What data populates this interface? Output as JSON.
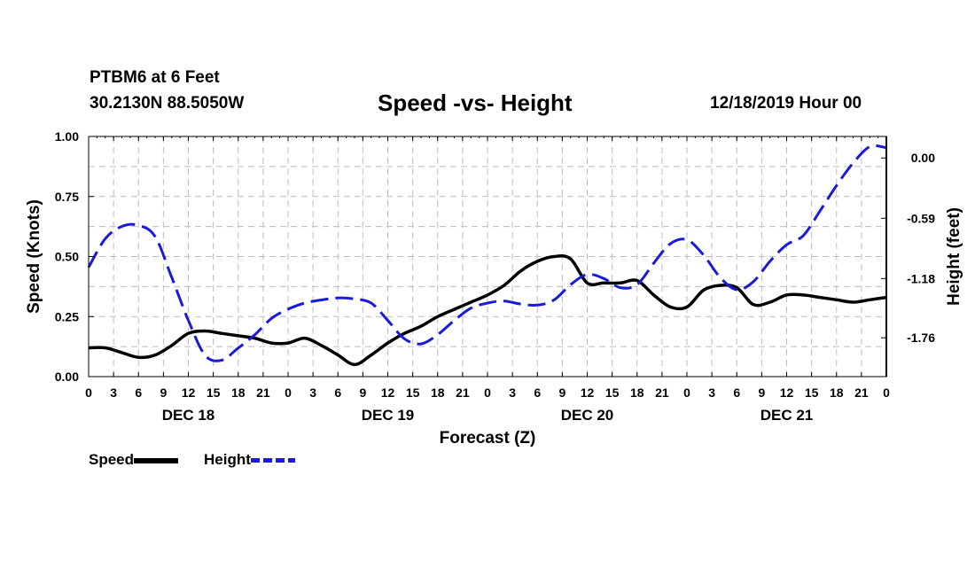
{
  "header": {
    "station": "PTBM6 at 6 Feet",
    "coords": "30.2130N 88.5050W",
    "title": "Speed -vs- Height",
    "timestamp": "12/18/2019 Hour 00"
  },
  "legend": {
    "speed": "Speed",
    "height": "Height"
  },
  "colors": {
    "speed": "#000000",
    "height": "#1a1adb",
    "grid": "#bdbdbd"
  },
  "chart_data": {
    "type": "line",
    "title": "Speed -vs- Height",
    "xlabel": "Forecast (Z)",
    "ylabel_left": "Speed (Knots)",
    "ylabel_right": "Height (feet)",
    "xlim": [
      0,
      96
    ],
    "ylim_left": [
      0,
      1.0
    ],
    "ylim_right": [
      -2.14,
      0.21
    ],
    "x_tick_labels": [
      "0",
      "3",
      "6",
      "9",
      "12",
      "15",
      "18",
      "21",
      "0",
      "3",
      "6",
      "9",
      "12",
      "15",
      "18",
      "21",
      "0",
      "3",
      "6",
      "9",
      "12",
      "15",
      "18",
      "21",
      "0",
      "3",
      "6",
      "9",
      "12",
      "15",
      "18",
      "21",
      "0"
    ],
    "left_ticks": [
      "0.00",
      "0.25",
      "0.50",
      "0.75",
      "1.00"
    ],
    "right_ticks": [
      {
        "value": 0.0,
        "label": "0.00"
      },
      {
        "value": -0.59,
        "label": "-0.59"
      },
      {
        "value": -1.18,
        "label": "-1.18"
      },
      {
        "value": -1.76,
        "label": "-1.76"
      }
    ],
    "day_labels": [
      {
        "hour": 12,
        "label": "DEC 18"
      },
      {
        "hour": 36,
        "label": "DEC 19"
      },
      {
        "hour": 60,
        "label": "DEC 20"
      },
      {
        "hour": 84,
        "label": "DEC 21"
      }
    ],
    "grid": true,
    "series": [
      {
        "name": "Speed",
        "axis": "left",
        "x": [
          0,
          2,
          4,
          6,
          8,
          10,
          12,
          14,
          16,
          18,
          20,
          22,
          24,
          26,
          28,
          30,
          32,
          34,
          36,
          38,
          40,
          42,
          44,
          46,
          48,
          50,
          52,
          54,
          56,
          58,
          60,
          62,
          64,
          66,
          68,
          70,
          72,
          74,
          76,
          78,
          80,
          82,
          84,
          86,
          88,
          90,
          92,
          94,
          96
        ],
        "values": [
          0.12,
          0.12,
          0.1,
          0.08,
          0.09,
          0.13,
          0.18,
          0.19,
          0.18,
          0.17,
          0.16,
          0.14,
          0.14,
          0.16,
          0.13,
          0.09,
          0.05,
          0.09,
          0.14,
          0.18,
          0.21,
          0.25,
          0.28,
          0.31,
          0.34,
          0.38,
          0.44,
          0.48,
          0.5,
          0.49,
          0.39,
          0.39,
          0.39,
          0.4,
          0.34,
          0.29,
          0.29,
          0.36,
          0.38,
          0.37,
          0.3,
          0.31,
          0.34,
          0.34,
          0.33,
          0.32,
          0.31,
          0.32,
          0.33
        ]
      },
      {
        "name": "Height",
        "axis": "right",
        "x": [
          0,
          2,
          4,
          6,
          8,
          10,
          12,
          14,
          16,
          18,
          20,
          22,
          24,
          26,
          28,
          30,
          32,
          34,
          36,
          38,
          40,
          42,
          44,
          46,
          48,
          50,
          52,
          54,
          56,
          58,
          60,
          62,
          64,
          66,
          68,
          70,
          72,
          74,
          76,
          78,
          80,
          82,
          84,
          86,
          88,
          90,
          92,
          94,
          96
        ],
        "values": [
          -1.07,
          -0.79,
          -0.67,
          -0.66,
          -0.77,
          -1.17,
          -1.59,
          -1.93,
          -1.98,
          -1.86,
          -1.73,
          -1.57,
          -1.48,
          -1.42,
          -1.39,
          -1.37,
          -1.38,
          -1.42,
          -1.59,
          -1.77,
          -1.82,
          -1.73,
          -1.59,
          -1.47,
          -1.42,
          -1.4,
          -1.43,
          -1.44,
          -1.39,
          -1.24,
          -1.14,
          -1.18,
          -1.27,
          -1.24,
          -1.03,
          -0.84,
          -0.8,
          -0.95,
          -1.17,
          -1.29,
          -1.21,
          -1.01,
          -0.85,
          -0.76,
          -0.52,
          -0.27,
          -0.05,
          0.11,
          0.1
        ]
      }
    ]
  }
}
